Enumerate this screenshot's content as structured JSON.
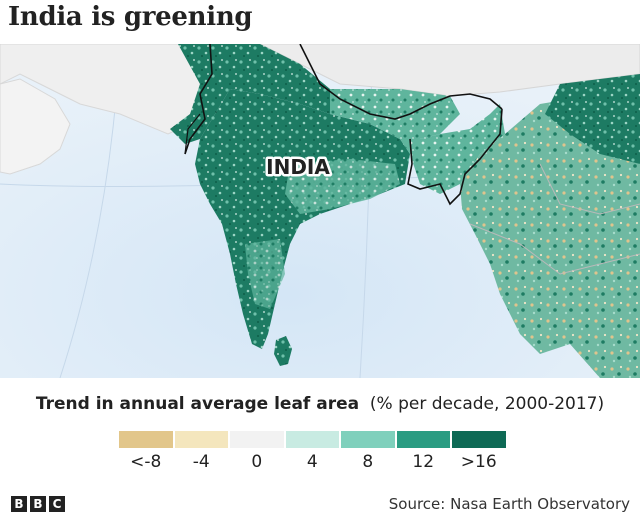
{
  "title": "India is greening",
  "map": {
    "country_label": "INDIA",
    "colors": {
      "ocean": "#e3eef8",
      "neighbour_land": "#f2f2f2",
      "india_green": "#1c7a62",
      "dark_green": "#0e6a52",
      "mid_green": "#3a9e82",
      "light_green": "#9fd8c8",
      "tan": "#e1c488",
      "border": "#111111"
    }
  },
  "legend": {
    "title_bold": "Trend in annual average leaf area",
    "title_rest": "(% per decade, 2000-2017)",
    "swatch_colors": [
      "#e2c68a",
      "#f4e6bd",
      "#f2f2f2",
      "#c8ebe2",
      "#7fd0bc",
      "#2a9c82",
      "#0e6a55"
    ],
    "tick_labels": [
      "<-8",
      "-4",
      "0",
      "4",
      "8",
      "12",
      ">16"
    ]
  },
  "footer": {
    "logo_letters": [
      "B",
      "B",
      "C"
    ],
    "source": "Source: Nasa Earth Observatory"
  }
}
